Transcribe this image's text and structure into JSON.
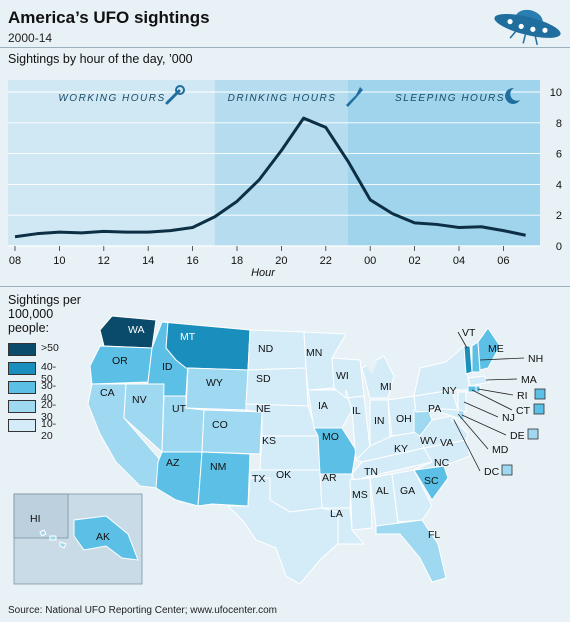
{
  "header": {
    "title": "America’s UFO sightings",
    "subtitle": "2000-14"
  },
  "source": "Source: National UFO Reporting Center; www.ufocenter.com",
  "chart_data": [
    {
      "type": "line",
      "title": "Sightings by hour of the day, ’000",
      "xlabel": "Hour",
      "ylabel": "",
      "ylim": [
        0,
        10
      ],
      "y_ticks": [
        "0",
        "2",
        "4",
        "6",
        "8",
        "10"
      ],
      "x_ticks": [
        "08",
        "10",
        "12",
        "14",
        "16",
        "18",
        "20",
        "22",
        "00",
        "02",
        "04",
        "06"
      ],
      "bands": [
        {
          "label": "WORKING HOURS",
          "icon": "spanner-icon",
          "color": "#cfe8f4"
        },
        {
          "label": "DRINKING HOURS",
          "icon": "bottle-icon",
          "color": "#b5ddef"
        },
        {
          "label": "SLEEPING HOURS",
          "icon": "moon-icon",
          "color": "#9fd4ec"
        }
      ],
      "line_color": "#0d2f45",
      "grid": true,
      "series": [
        {
          "x": [
            "08",
            "09",
            "10",
            "11",
            "12",
            "13",
            "14",
            "15",
            "16",
            "17",
            "18",
            "19",
            "20",
            "21",
            "22",
            "23",
            "00",
            "01",
            "02",
            "03",
            "04",
            "05",
            "06",
            "07"
          ],
          "values": [
            0.6,
            0.8,
            0.9,
            0.85,
            0.95,
            0.9,
            0.9,
            1.0,
            1.2,
            1.9,
            2.9,
            4.3,
            6.2,
            8.3,
            7.7,
            5.5,
            3.0,
            2.1,
            1.5,
            1.4,
            1.2,
            1.25,
            1.0,
            0.7
          ]
        }
      ]
    },
    {
      "type": "choropleth",
      "title": "Sightings per 100,000 people:",
      "legend": [
        {
          "label": ">50",
          "color": "#0a4a6a"
        },
        {
          "label": "40-50",
          "color": "#1a8fbd"
        },
        {
          "label": "30-40",
          "color": "#5cc0e6"
        },
        {
          "label": "20-30",
          "color": "#9fd8f1"
        },
        {
          "label": "10-20",
          "color": "#d4ecf8"
        }
      ],
      "states": [
        {
          "abbr": "WA",
          "bin": ">50"
        },
        {
          "abbr": "MT",
          "bin": "40-50"
        },
        {
          "abbr": "VT",
          "bin": "40-50"
        },
        {
          "abbr": "OR",
          "bin": "30-40"
        },
        {
          "abbr": "ID",
          "bin": "30-40"
        },
        {
          "abbr": "AZ",
          "bin": "30-40"
        },
        {
          "abbr": "NM",
          "bin": "30-40"
        },
        {
          "abbr": "ME",
          "bin": "30-40"
        },
        {
          "abbr": "NH",
          "bin": "30-40"
        },
        {
          "abbr": "MO",
          "bin": "30-40"
        },
        {
          "abbr": "SC",
          "bin": "30-40"
        },
        {
          "abbr": "RI",
          "bin": "30-40"
        },
        {
          "abbr": "CT",
          "bin": "30-40"
        },
        {
          "abbr": "AK",
          "bin": "30-40"
        },
        {
          "abbr": "WY",
          "bin": "20-30"
        },
        {
          "abbr": "NV",
          "bin": "20-30"
        },
        {
          "abbr": "UT",
          "bin": "20-30"
        },
        {
          "abbr": "CO",
          "bin": "20-30"
        },
        {
          "abbr": "CA",
          "bin": "20-30"
        },
        {
          "abbr": "WV",
          "bin": "20-30"
        },
        {
          "abbr": "FL",
          "bin": "20-30"
        },
        {
          "abbr": "DE",
          "bin": "20-30"
        },
        {
          "abbr": "DC",
          "bin": "20-30"
        },
        {
          "abbr": "HI",
          "bin": "20-30"
        },
        {
          "abbr": "ND",
          "bin": "10-20"
        },
        {
          "abbr": "SD",
          "bin": "10-20"
        },
        {
          "abbr": "NE",
          "bin": "10-20"
        },
        {
          "abbr": "KS",
          "bin": "10-20"
        },
        {
          "abbr": "OK",
          "bin": "10-20"
        },
        {
          "abbr": "TX",
          "bin": "10-20"
        },
        {
          "abbr": "MN",
          "bin": "10-20"
        },
        {
          "abbr": "IA",
          "bin": "10-20"
        },
        {
          "abbr": "AR",
          "bin": "10-20"
        },
        {
          "abbr": "LA",
          "bin": "10-20"
        },
        {
          "abbr": "WI",
          "bin": "10-20"
        },
        {
          "abbr": "IL",
          "bin": "10-20"
        },
        {
          "abbr": "MI",
          "bin": "10-20"
        },
        {
          "abbr": "IN",
          "bin": "10-20"
        },
        {
          "abbr": "OH",
          "bin": "10-20"
        },
        {
          "abbr": "KY",
          "bin": "10-20"
        },
        {
          "abbr": "TN",
          "bin": "10-20"
        },
        {
          "abbr": "MS",
          "bin": "10-20"
        },
        {
          "abbr": "AL",
          "bin": "10-20"
        },
        {
          "abbr": "GA",
          "bin": "10-20"
        },
        {
          "abbr": "NC",
          "bin": "10-20"
        },
        {
          "abbr": "VA",
          "bin": "10-20"
        },
        {
          "abbr": "PA",
          "bin": "10-20"
        },
        {
          "abbr": "NY",
          "bin": "10-20"
        },
        {
          "abbr": "NJ",
          "bin": "10-20"
        },
        {
          "abbr": "MD",
          "bin": "10-20"
        },
        {
          "abbr": "MA",
          "bin": "10-20"
        }
      ]
    }
  ]
}
